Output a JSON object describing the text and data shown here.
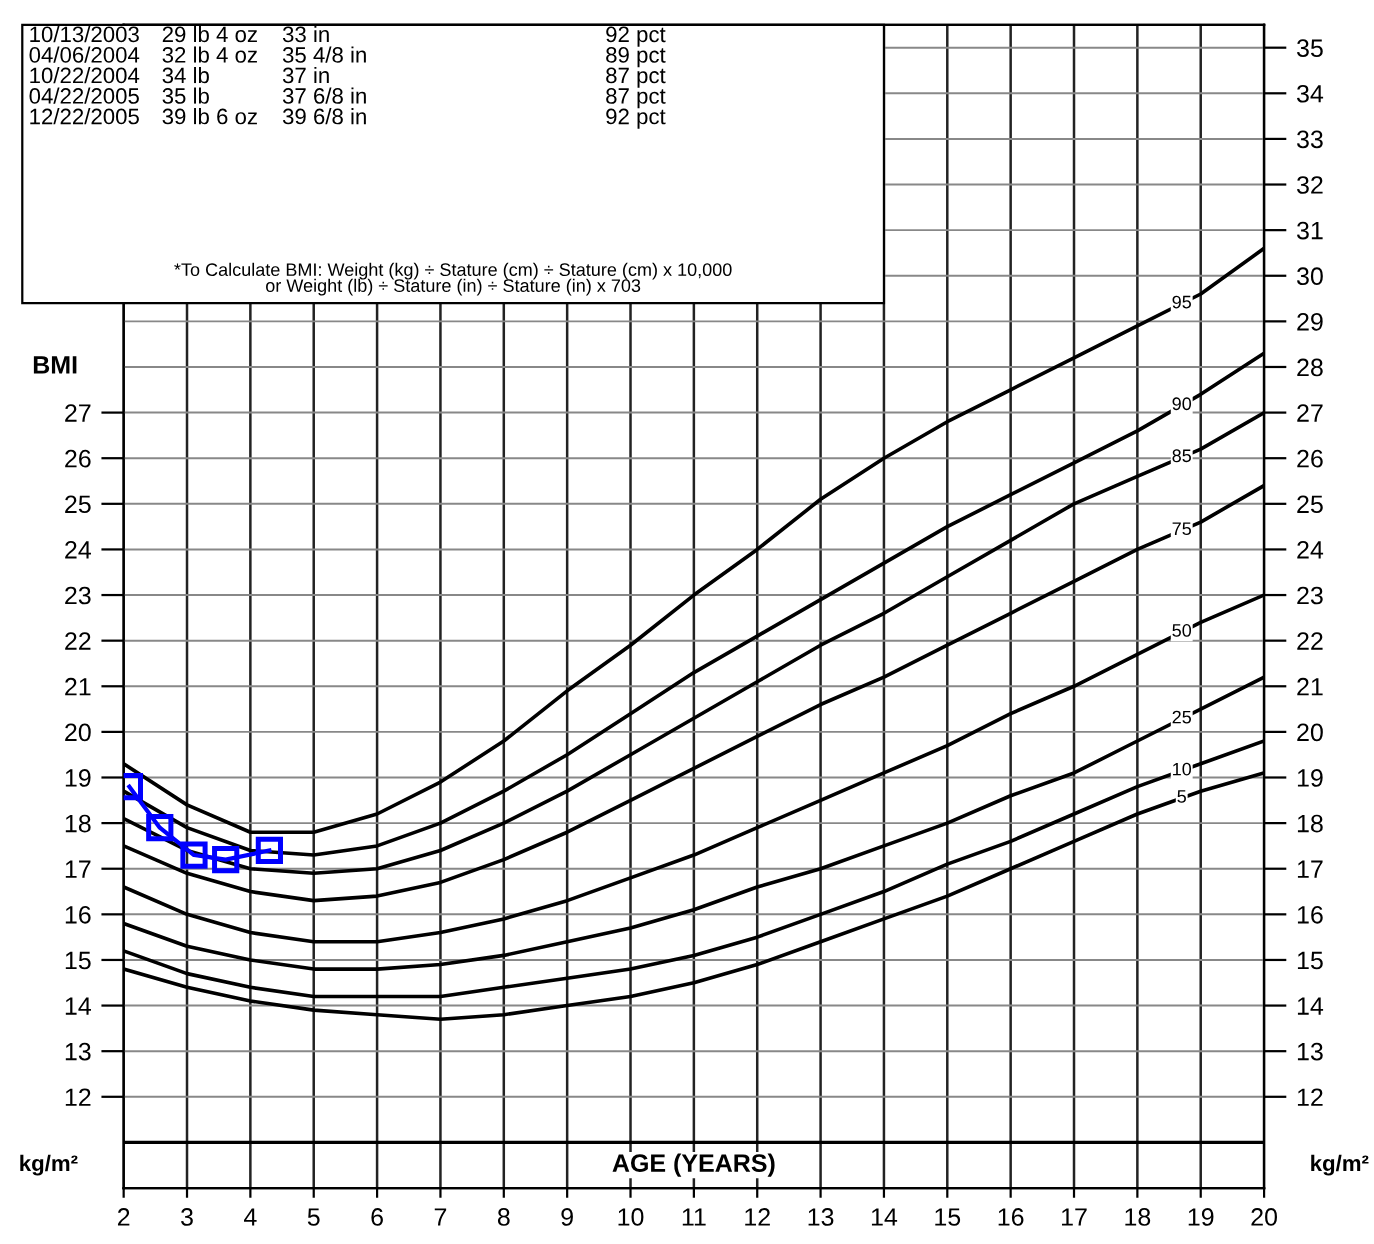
{
  "chart_data": {
    "type": "line",
    "xlabel": "AGE (YEARS)",
    "ylabel": "BMI",
    "x": [
      2,
      3,
      4,
      5,
      6,
      7,
      8,
      9,
      10,
      11,
      12,
      13,
      14,
      15,
      16,
      17,
      18,
      19,
      20
    ],
    "series": [
      {
        "name": "95",
        "color": "#000000",
        "marker": "none",
        "values": [
          19.3,
          18.4,
          17.8,
          17.8,
          18.2,
          18.9,
          19.8,
          20.9,
          21.9,
          23.0,
          24.0,
          25.1,
          26.0,
          26.8,
          27.5,
          28.2,
          28.9,
          29.6,
          30.6
        ]
      },
      {
        "name": "90",
        "color": "#000000",
        "marker": "none",
        "values": [
          18.7,
          17.9,
          17.4,
          17.3,
          17.5,
          18.0,
          18.7,
          19.5,
          20.4,
          21.3,
          22.1,
          22.9,
          23.7,
          24.5,
          25.2,
          25.9,
          26.6,
          27.4,
          28.3
        ]
      },
      {
        "name": "85",
        "color": "#000000",
        "marker": "none",
        "values": [
          18.1,
          17.4,
          17.0,
          16.9,
          17.0,
          17.4,
          18.0,
          18.7,
          19.5,
          20.3,
          21.1,
          21.9,
          22.6,
          23.4,
          24.2,
          25.0,
          25.6,
          26.2,
          27.0
        ]
      },
      {
        "name": "75",
        "color": "#000000",
        "marker": "none",
        "values": [
          17.5,
          16.9,
          16.5,
          16.3,
          16.4,
          16.7,
          17.2,
          17.8,
          18.5,
          19.2,
          19.9,
          20.6,
          21.2,
          21.9,
          22.6,
          23.3,
          24.0,
          24.6,
          25.4
        ]
      },
      {
        "name": "50",
        "color": "#000000",
        "marker": "none",
        "values": [
          16.6,
          16.0,
          15.6,
          15.4,
          15.4,
          15.6,
          15.9,
          16.3,
          16.8,
          17.3,
          17.9,
          18.5,
          19.1,
          19.7,
          20.4,
          21.0,
          21.7,
          22.4,
          23.0
        ]
      },
      {
        "name": "25",
        "color": "#000000",
        "marker": "none",
        "values": [
          15.8,
          15.3,
          15.0,
          14.8,
          14.8,
          14.9,
          15.1,
          15.4,
          15.7,
          16.1,
          16.6,
          17.0,
          17.5,
          18.0,
          18.6,
          19.1,
          19.8,
          20.5,
          21.2
        ]
      },
      {
        "name": "10",
        "color": "#000000",
        "marker": "none",
        "values": [
          15.2,
          14.7,
          14.4,
          14.2,
          14.2,
          14.2,
          14.4,
          14.6,
          14.8,
          15.1,
          15.5,
          16.0,
          16.5,
          17.1,
          17.6,
          18.2,
          18.8,
          19.3,
          19.8
        ]
      },
      {
        "name": "5",
        "color": "#000000",
        "marker": "none",
        "values": [
          14.8,
          14.4,
          14.1,
          13.9,
          13.8,
          13.7,
          13.8,
          14.0,
          14.2,
          14.5,
          14.9,
          15.4,
          15.9,
          16.4,
          17.0,
          17.6,
          18.2,
          18.7,
          19.1
        ]
      },
      {
        "color": "#0000ff",
        "marker": "square",
        "x": [
          2.09,
          2.57,
          3.11,
          3.61,
          4.3
        ],
        "values": [
          18.8,
          17.9,
          17.3,
          17.2,
          17.4
        ]
      }
    ],
    "xlim": [
      2,
      20
    ],
    "xticks": [
      2,
      3,
      4,
      5,
      6,
      7,
      8,
      9,
      10,
      11,
      12,
      13,
      14,
      15,
      16,
      17,
      18,
      19,
      20
    ],
    "ylim": [
      10,
      35.5
    ],
    "yticks": [
      12,
      13,
      14,
      15,
      16,
      17,
      18,
      19,
      20,
      21,
      22,
      23,
      24,
      25,
      26,
      27
    ],
    "y2lim": [
      10,
      35.5
    ],
    "y2ticks": [
      12,
      13,
      14,
      15,
      16,
      17,
      18,
      19,
      20,
      21,
      22,
      23,
      24,
      25,
      26,
      27,
      28,
      29,
      30,
      31,
      32,
      33,
      34,
      35
    ],
    "grid": true,
    "legend": false,
    "ref_lines": [
      {
        "axis": "y",
        "value": 11,
        "color": "#000000"
      }
    ],
    "annotations": [
      "10/13/2003",
      "29 lb 4 oz",
      "33 in",
      "92 pct",
      "04/06/2004",
      "32 lb 4 oz",
      "35 4/8 in",
      "89 pct",
      "10/22/2004",
      "34 lb",
      "37 in",
      "87 pct",
      "04/22/2005",
      "35 lb",
      "37 6/8 in",
      "87 pct",
      "12/22/2005",
      "39 lb 6 oz",
      "39 6/8 in",
      "92 pct",
      "*To Calculate BMI: Weight (kg) ÷ Stature (cm) ÷ Stature (cm) x 10,000",
      "or Weight (lb) ÷ Stature (in) ÷ Stature (in) x 703",
      "kg/m²",
      "kg/m²"
    ]
  }
}
